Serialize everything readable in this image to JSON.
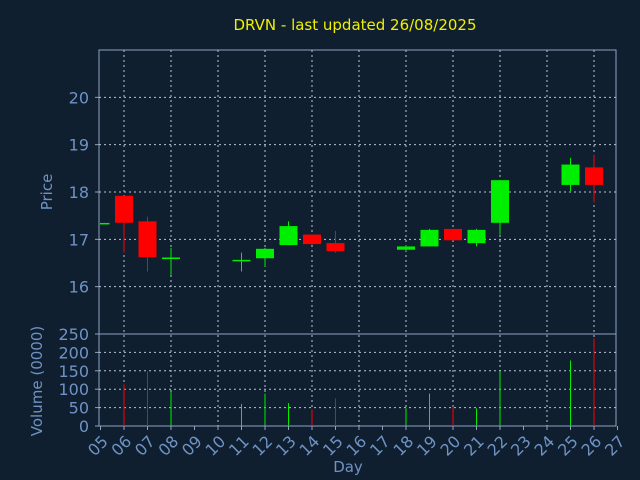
{
  "chart_data": {
    "type": "candlestick",
    "title": "DRVN - last updated 26/08/2025",
    "xlabel": "Day",
    "ylabel_price": "Price",
    "ylabel_volume": "Volume (0000)",
    "x_tick_labels": [
      "05",
      "06",
      "07",
      "08",
      "09",
      "10",
      "11",
      "12",
      "13",
      "14",
      "15",
      "16",
      "17",
      "18",
      "19",
      "20",
      "21",
      "22",
      "23",
      "24",
      "25",
      "26",
      "27"
    ],
    "price_ticks": [
      16,
      17,
      18,
      19,
      20
    ],
    "price_ylim": [
      15.0,
      21.0
    ],
    "volume_ticks": [
      0,
      50,
      100,
      150,
      200,
      250
    ],
    "volume_ylim": [
      0,
      250
    ],
    "grid": true,
    "colors": {
      "up": "#00ee00",
      "down": "#ff0000",
      "background": "#0f1f30",
      "plot_border": "#8fa3bf",
      "grid": "#b8c4d4",
      "text": "#6f93c4",
      "title": "#f0f000"
    },
    "candles": [
      {
        "slot": 0,
        "open": 17.33,
        "high": 17.33,
        "low": 17.33,
        "close": 17.33,
        "volume": 0
      },
      {
        "slot": 1,
        "open": 17.92,
        "high": 17.92,
        "low": 16.72,
        "close": 17.35,
        "volume": 113
      },
      {
        "slot": 2,
        "open": 17.38,
        "high": 17.48,
        "low": 16.32,
        "close": 16.62,
        "volume": 148
      },
      {
        "slot": 3,
        "open": 16.6,
        "high": 16.82,
        "low": 16.25,
        "close": 16.6,
        "volume": 92
      },
      {
        "slot": 6,
        "open": 16.55,
        "high": 16.72,
        "low": 16.32,
        "close": 16.55,
        "volume": 60
      },
      {
        "slot": 7,
        "open": 16.6,
        "high": 16.82,
        "low": 16.42,
        "close": 16.8,
        "volume": 88
      },
      {
        "slot": 8,
        "open": 16.88,
        "high": 17.38,
        "low": 16.88,
        "close": 17.28,
        "volume": 62
      },
      {
        "slot": 9,
        "open": 17.1,
        "high": 17.1,
        "low": 16.88,
        "close": 16.9,
        "volume": 45
      },
      {
        "slot": 10,
        "open": 16.92,
        "high": 17.18,
        "low": 16.72,
        "close": 16.75,
        "volume": 75
      },
      {
        "slot": 13,
        "open": 16.78,
        "high": 16.88,
        "low": 16.75,
        "close": 16.85,
        "volume": 48
      },
      {
        "slot": 14,
        "open": 16.85,
        "high": 17.22,
        "low": 16.85,
        "close": 17.2,
        "volume": 88
      },
      {
        "slot": 15,
        "open": 17.22,
        "high": 17.22,
        "low": 16.98,
        "close": 16.98,
        "volume": 52
      },
      {
        "slot": 16,
        "open": 16.92,
        "high": 17.22,
        "low": 16.85,
        "close": 17.2,
        "volume": 48
      },
      {
        "slot": 17,
        "open": 17.35,
        "high": 18.25,
        "low": 17.1,
        "close": 18.25,
        "volume": 150
      },
      {
        "slot": 20,
        "open": 18.15,
        "high": 18.72,
        "low": 18.02,
        "close": 18.58,
        "volume": 178
      },
      {
        "slot": 21,
        "open": 18.52,
        "high": 18.78,
        "low": 17.78,
        "close": 18.15,
        "volume": 238
      }
    ]
  }
}
